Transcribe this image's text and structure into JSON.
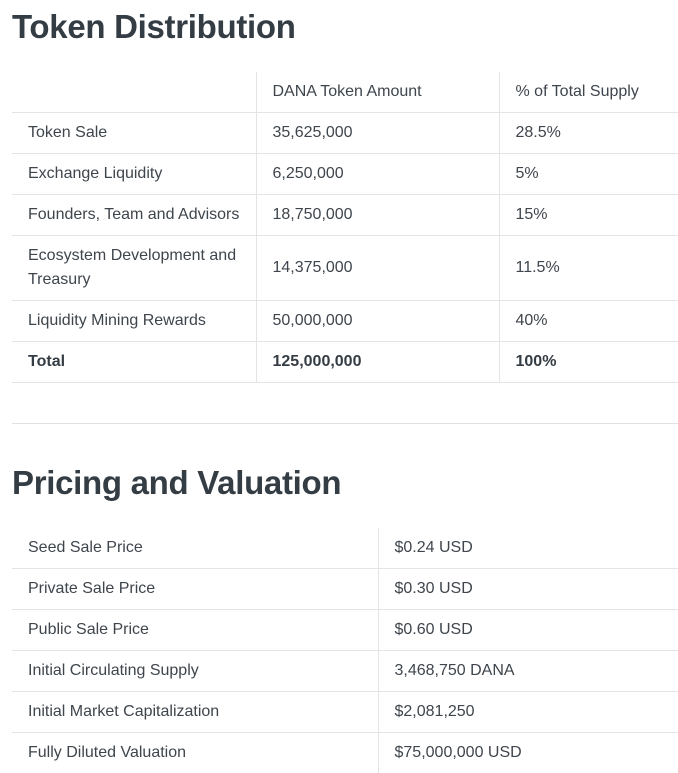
{
  "distribution": {
    "title": "Token Distribution",
    "headers": [
      "",
      "DANA Token Amount",
      "% of Total Supply"
    ],
    "rows": [
      {
        "category": "Token Sale",
        "amount": "35,625,000",
        "percent": "28.5%"
      },
      {
        "category": "Exchange Liquidity",
        "amount": "6,250,000",
        "percent": "5%"
      },
      {
        "category": "Founders, Team and Advisors",
        "amount": "18,750,000",
        "percent": "15%"
      },
      {
        "category": "Ecosystem Development and Treasury",
        "amount": "14,375,000",
        "percent": "11.5%"
      },
      {
        "category": "Liquidity Mining Rewards",
        "amount": "50,000,000",
        "percent": "40%"
      }
    ],
    "total": {
      "category": "Total",
      "amount": "125,000,000",
      "percent": "100%"
    }
  },
  "pricing": {
    "title": "Pricing and Valuation",
    "rows": [
      {
        "label": "Seed Sale Price",
        "value": "$0.24 USD"
      },
      {
        "label": "Private Sale Price",
        "value": "$0.30 USD"
      },
      {
        "label": "Public Sale Price",
        "value": "$0.60 USD"
      },
      {
        "label": "Initial Circulating Supply",
        "value": "3,468,750 DANA"
      },
      {
        "label": "Initial Market Capitalization",
        "value": "$2,081,250"
      },
      {
        "label": "Fully Diluted Valuation",
        "value": "$75,000,000 USD"
      }
    ]
  }
}
